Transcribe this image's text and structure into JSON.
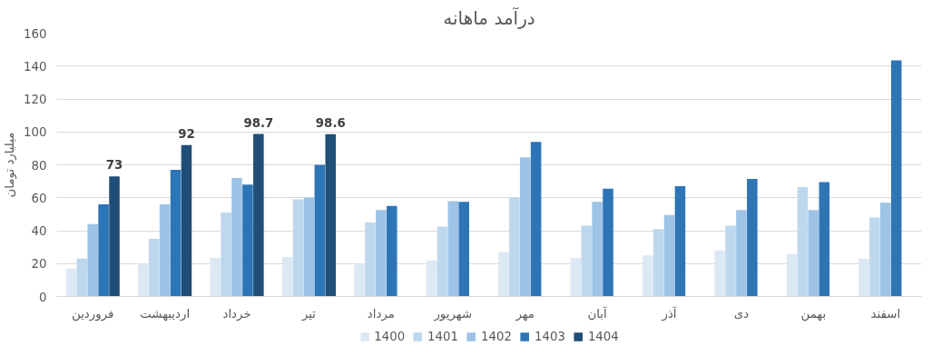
{
  "chart_data": {
    "type": "bar",
    "title": "درآمد ماهانه",
    "ylabel": "میلیارد تومان",
    "categories": [
      "فروردین",
      "اردیبهشت",
      "خرداد",
      "تیر",
      "مرداد",
      "شهریور",
      "مهر",
      "آبان",
      "آذر",
      "دی",
      "بهمن",
      "اسفند"
    ],
    "series": [
      {
        "name": "1400",
        "color": "#dde8f5",
        "values": [
          17,
          20,
          23.5,
          24,
          20,
          22,
          27,
          23.5,
          25,
          28,
          26,
          23
        ]
      },
      {
        "name": "1401",
        "color": "#bdd7ee",
        "values": [
          23,
          35,
          51,
          59,
          45,
          42.5,
          60,
          43,
          41,
          43,
          66.5,
          48
        ]
      },
      {
        "name": "1402",
        "color": "#9dc3e6",
        "values": [
          44,
          56,
          72,
          60,
          52.5,
          58,
          84.5,
          57.5,
          49.5,
          52.5,
          52.5,
          57
        ]
      },
      {
        "name": "1403",
        "color": "#2e75b6",
        "values": [
          56,
          77,
          68,
          80,
          55,
          57.5,
          94,
          65.5,
          67,
          71.5,
          69.5,
          143.5
        ]
      },
      {
        "name": "1404",
        "color": "#1f4e79",
        "values": [
          73,
          92,
          98.7,
          98.6,
          null,
          null,
          null,
          null,
          null,
          null,
          null,
          null
        ],
        "value_labels": [
          "73",
          "92",
          "98.7",
          "98.6",
          null,
          null,
          null,
          null,
          null,
          null,
          null,
          null
        ]
      }
    ],
    "ylim": [
      0,
      160
    ],
    "yticks": [
      0,
      20,
      40,
      60,
      80,
      100,
      120,
      140,
      160
    ],
    "grid": "y",
    "legend": "bottom"
  }
}
